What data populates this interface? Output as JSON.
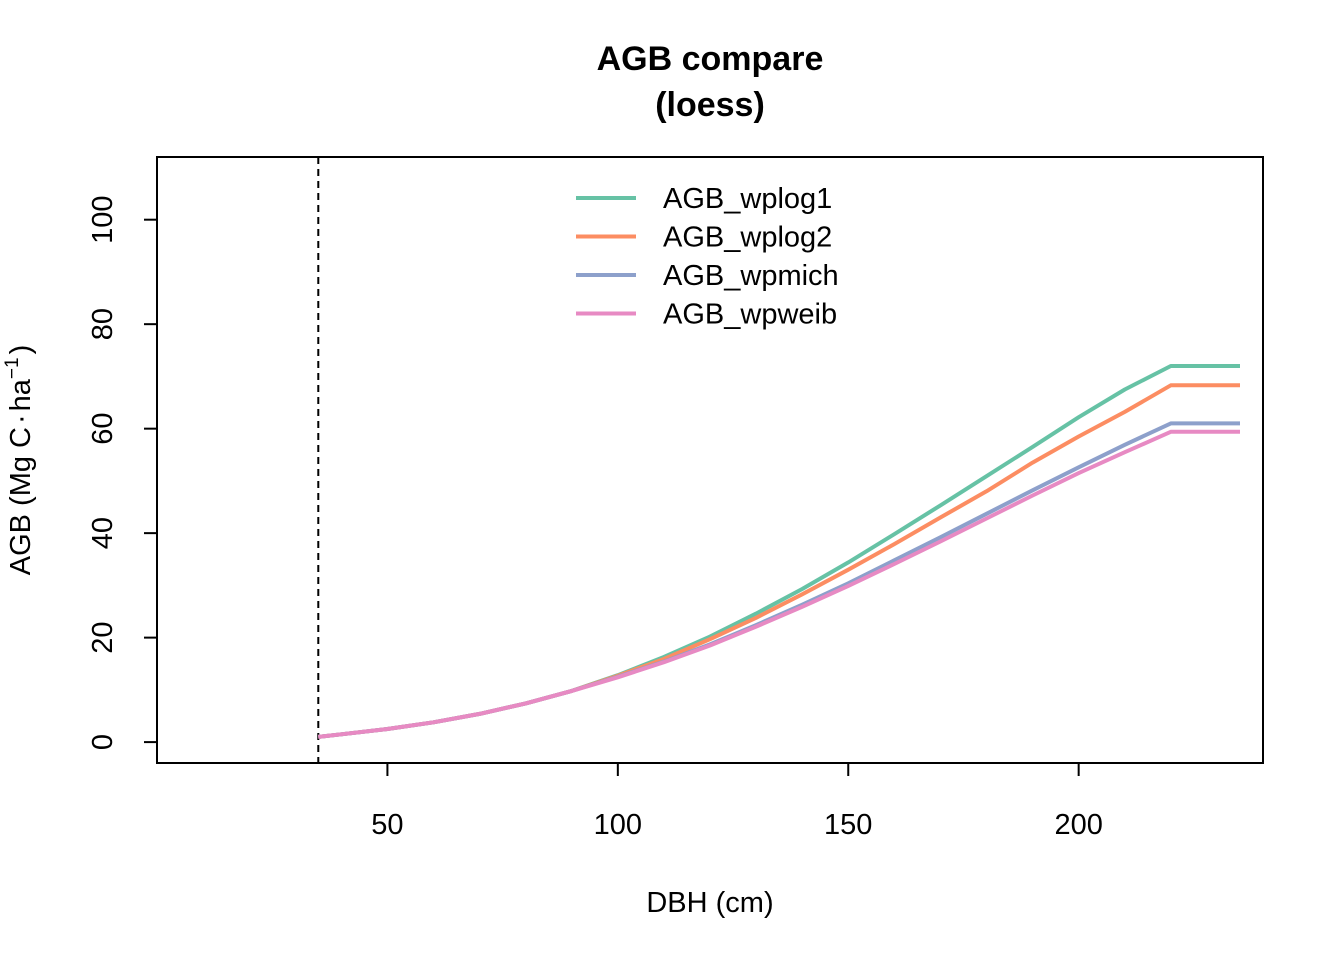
{
  "chart_data": {
    "type": "line",
    "title": [
      "AGB compare",
      "(loess)"
    ],
    "xlabel": "DBH (cm)",
    "ylabel": {
      "prefix": "AGB (Mg C",
      "dot": "·",
      "unit": "ha",
      "exponent": "−1",
      "suffix": ")"
    },
    "xlim": [
      0,
      240
    ],
    "ylim": [
      -4,
      112
    ],
    "xticks": [
      50,
      100,
      150,
      200
    ],
    "yticks": [
      0,
      20,
      40,
      60,
      80,
      100
    ],
    "grid": false,
    "legend_position": "top",
    "vline": {
      "x": 35,
      "style": "dashed"
    },
    "x": [
      35,
      40,
      50,
      60,
      70,
      80,
      90,
      100,
      110,
      120,
      130,
      140,
      150,
      160,
      170,
      180,
      190,
      200,
      210,
      220,
      235
    ],
    "series": [
      {
        "name": "AGB_wplog1",
        "color": "#66C2A5",
        "values": [
          1.0,
          1.5,
          2.5,
          3.8,
          5.4,
          7.4,
          9.8,
          12.8,
          16.3,
          20.2,
          24.6,
          29.3,
          34.4,
          39.8,
          45.3,
          50.9,
          56.5,
          62.2,
          67.5,
          72.0,
          72.0
        ]
      },
      {
        "name": "AGB_wplog2",
        "color": "#FC8D62",
        "values": [
          1.0,
          1.5,
          2.5,
          3.8,
          5.4,
          7.4,
          9.8,
          12.7,
          15.9,
          19.7,
          23.8,
          28.3,
          33.0,
          37.9,
          43.0,
          48.0,
          53.5,
          58.5,
          63.2,
          68.3,
          68.3
        ]
      },
      {
        "name": "AGB_wpmich",
        "color": "#8DA0CB",
        "values": [
          1.0,
          1.5,
          2.5,
          3.8,
          5.4,
          7.4,
          9.8,
          12.5,
          15.4,
          18.7,
          22.4,
          26.3,
          30.4,
          34.8,
          39.2,
          43.7,
          48.2,
          52.6,
          56.9,
          61.0,
          61.0
        ]
      },
      {
        "name": "AGB_wpweib",
        "color": "#E78AC3",
        "values": [
          1.0,
          1.5,
          2.5,
          3.8,
          5.4,
          7.4,
          9.8,
          12.4,
          15.3,
          18.5,
          22.1,
          25.9,
          29.9,
          34.1,
          38.4,
          42.8,
          47.2,
          51.5,
          55.5,
          59.4,
          59.4
        ]
      }
    ]
  }
}
